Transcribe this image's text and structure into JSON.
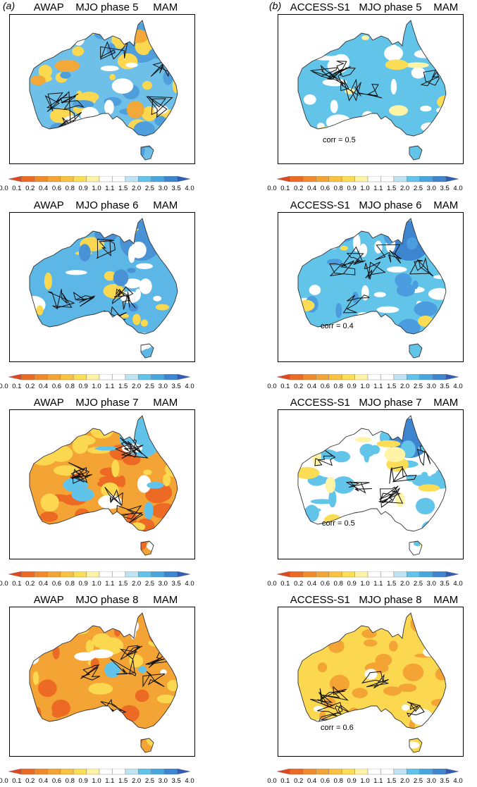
{
  "col_labels": [
    "(a)",
    "(b)"
  ],
  "panels": [
    {
      "id": "a5",
      "title": "AWAP    MJO phase 5     MAM",
      "scheme": "awap5",
      "corr": null
    },
    {
      "id": "b5",
      "title": "ACCESS-S1   MJO phase 5    MAM",
      "scheme": "acc5",
      "corr": "corr = 0.5"
    },
    {
      "id": "a6",
      "title": "AWAP    MJO phase 6     MAM",
      "scheme": "awap6",
      "corr": null
    },
    {
      "id": "b6",
      "title": "ACCESS-S1   MJO phase 6    MAM",
      "scheme": "acc6",
      "corr": "corr = 0.4"
    },
    {
      "id": "a7",
      "title": "AWAP    MJO phase 7     MAM",
      "scheme": "awap7",
      "corr": null
    },
    {
      "id": "b7",
      "title": "ACCESS-S1   MJO phase 7    MAM",
      "scheme": "acc7",
      "corr": "corr = 0.5"
    },
    {
      "id": "a8",
      "title": "AWAP    MJO phase 8     MAM",
      "scheme": "awap8",
      "corr": null
    },
    {
      "id": "b8",
      "title": "ACCESS-S1   MJO phase 8    MAM",
      "scheme": "acc8",
      "corr": "corr = 0.6"
    }
  ],
  "colorbar": {
    "ticks": [
      "0.0",
      "0.1",
      "0.2",
      "0.4",
      "0.6",
      "0.8",
      "0.9",
      "1.0",
      "1.1",
      "1.5",
      "2.0",
      "2.5",
      "3.0",
      "3.5",
      "4.0"
    ],
    "colors": [
      "#e0481f",
      "#ec6a23",
      "#f08a2a",
      "#f4a435",
      "#f8c13f",
      "#fbdd55",
      "#fff4a6",
      "#ffffff",
      "#ffffff",
      "#bfe3f3",
      "#62c3ea",
      "#48a6de",
      "#3d85cf",
      "#2f5db5"
    ]
  }
}
